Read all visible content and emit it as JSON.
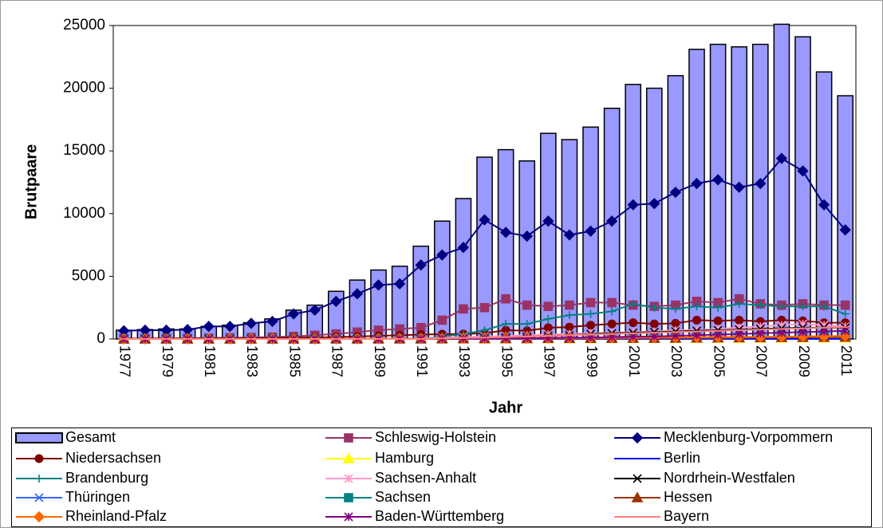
{
  "chart_data": {
    "type": "bar-line",
    "y_label": "Brutpaare",
    "x_label": "Jahr",
    "categories": [
      1977,
      null,
      1979,
      null,
      1981,
      null,
      1983,
      null,
      1985,
      null,
      1987,
      null,
      1989,
      null,
      1991,
      null,
      1993,
      null,
      1995,
      null,
      1997,
      null,
      1999,
      null,
      2001,
      null,
      2003,
      null,
      2005,
      null,
      2007,
      null,
      2009,
      null,
      2011
    ],
    "ylim": [
      0,
      25000
    ],
    "yticks": [
      0,
      5000,
      10000,
      15000,
      20000,
      25000
    ],
    "grid": false,
    "legend": "bottom",
    "series": [
      {
        "name": "Gesamt",
        "kind": "bar",
        "color": "#9999ff",
        "values": [
          700,
          750,
          800,
          800,
          1000,
          1100,
          1300,
          1600,
          2300,
          2700,
          3800,
          4700,
          5500,
          5800,
          7400,
          9400,
          11200,
          14500,
          15100,
          14200,
          16400,
          15900,
          16900,
          18400,
          20300,
          20000,
          21000,
          23100,
          23500,
          23300,
          23500,
          25100,
          24100,
          21300,
          19400
        ]
      },
      {
        "name": "Schleswig-Holstein",
        "kind": "line",
        "marker": "square",
        "color": "#993366",
        "values": [
          30,
          40,
          50,
          60,
          80,
          100,
          120,
          150,
          200,
          300,
          400,
          550,
          700,
          800,
          900,
          1500,
          2400,
          2500,
          3200,
          2700,
          2600,
          2700,
          2900,
          2900,
          2700,
          2600,
          2700,
          3000,
          2900,
          3200,
          2800,
          2700,
          2800,
          2700,
          2700
        ]
      },
      {
        "name": "Mecklenburg-Vorpommern",
        "kind": "line",
        "marker": "diamond",
        "color": "#000080",
        "values": [
          650,
          700,
          700,
          750,
          1000,
          1000,
          1250,
          1400,
          2000,
          2300,
          3000,
          3600,
          4300,
          4400,
          5900,
          6700,
          7300,
          9500,
          8500,
          8200,
          9400,
          8300,
          8600,
          9400,
          10700,
          10800,
          11700,
          12400,
          12700,
          12100,
          12400,
          14400,
          13400,
          10700,
          8700
        ]
      },
      {
        "name": "Niedersachsen",
        "kind": "line",
        "marker": "circle",
        "color": "#800000",
        "values": [
          20,
          20,
          30,
          30,
          40,
          50,
          60,
          80,
          100,
          120,
          150,
          200,
          250,
          300,
          350,
          380,
          400,
          450,
          700,
          650,
          900,
          950,
          1100,
          1200,
          1300,
          1200,
          1250,
          1500,
          1450,
          1500,
          1400,
          1500,
          1450,
          1300,
          1300
        ]
      },
      {
        "name": "Hamburg",
        "kind": "line",
        "marker": "triangle",
        "color": "#ffff00",
        "values": [
          0,
          0,
          0,
          0,
          0,
          0,
          0,
          0,
          0,
          0,
          0,
          0,
          0,
          0,
          0,
          10,
          10,
          20,
          20,
          20,
          30,
          30,
          30,
          40,
          40,
          50,
          50,
          60,
          60,
          60,
          70,
          70,
          80,
          80,
          80
        ]
      },
      {
        "name": "Berlin",
        "kind": "line",
        "marker": "dash",
        "color": "#0000ff",
        "values": [
          0,
          0,
          0,
          0,
          0,
          0,
          0,
          0,
          0,
          0,
          0,
          0,
          0,
          0,
          0,
          10,
          10,
          10,
          10,
          10,
          10,
          10,
          10,
          10,
          10,
          10,
          10,
          10,
          10,
          10,
          10,
          10,
          10,
          10,
          10
        ]
      },
      {
        "name": "Brandenburg",
        "kind": "line",
        "marker": "plus",
        "color": "#008080",
        "values": [
          0,
          0,
          0,
          0,
          0,
          0,
          0,
          0,
          0,
          0,
          0,
          0,
          0,
          0,
          0,
          200,
          400,
          700,
          1200,
          1200,
          1600,
          1900,
          2000,
          2200,
          2800,
          2500,
          2400,
          2600,
          2500,
          2800,
          2700,
          2600,
          2600,
          2600,
          2000
        ]
      },
      {
        "name": "Sachsen-Anhalt",
        "kind": "line",
        "marker": "star",
        "color": "#ff99cc",
        "values": [
          0,
          0,
          0,
          0,
          0,
          0,
          0,
          0,
          0,
          0,
          0,
          0,
          0,
          0,
          50,
          100,
          150,
          200,
          250,
          300,
          350,
          400,
          450,
          500,
          550,
          600,
          700,
          700,
          800,
          900,
          1000,
          1100,
          1200,
          1100,
          1000
        ]
      },
      {
        "name": "Nordrhein-Westfalen",
        "kind": "line",
        "marker": "x",
        "color": "#000000",
        "values": [
          0,
          0,
          0,
          0,
          0,
          0,
          0,
          0,
          0,
          0,
          0,
          0,
          0,
          0,
          0,
          0,
          50,
          100,
          150,
          200,
          250,
          300,
          400,
          450,
          500,
          550,
          600,
          650,
          700,
          750,
          800,
          850,
          900,
          900,
          900
        ]
      },
      {
        "name": "Thüringen",
        "kind": "line",
        "marker": "x",
        "color": "#3366ff",
        "values": [
          0,
          0,
          0,
          0,
          0,
          0,
          0,
          0,
          0,
          0,
          0,
          0,
          0,
          0,
          0,
          20,
          30,
          30,
          40,
          50,
          50,
          60,
          60,
          70,
          80,
          90,
          100,
          100,
          110,
          120,
          130,
          140,
          150,
          150,
          160
        ]
      },
      {
        "name": "Sachsen",
        "kind": "line",
        "marker": "square",
        "color": "#008080",
        "values": [
          0,
          0,
          0,
          0,
          0,
          0,
          0,
          0,
          0,
          0,
          0,
          0,
          0,
          0,
          0,
          10,
          20,
          30,
          40,
          50,
          60,
          70,
          80,
          90,
          100,
          110,
          120,
          130,
          140,
          150,
          160,
          170,
          180,
          190,
          200
        ]
      },
      {
        "name": "Hessen",
        "kind": "line",
        "marker": "triangle",
        "color": "#993300",
        "values": [
          0,
          0,
          0,
          0,
          0,
          0,
          0,
          0,
          0,
          0,
          10,
          10,
          10,
          20,
          20,
          20,
          20,
          30,
          30,
          30,
          40,
          40,
          50,
          50,
          60,
          60,
          70,
          80,
          90,
          100,
          110,
          120,
          130,
          140,
          150
        ]
      },
      {
        "name": "Rheinland-Pfalz",
        "kind": "line",
        "marker": "diamond",
        "color": "#ff6600",
        "values": [
          0,
          0,
          0,
          0,
          0,
          0,
          0,
          0,
          0,
          0,
          10,
          10,
          20,
          20,
          30,
          30,
          40,
          40,
          50,
          60,
          70,
          80,
          90,
          100,
          110,
          120,
          130,
          140,
          150,
          160,
          170,
          180,
          200,
          220,
          250
        ]
      },
      {
        "name": "Baden-Württemberg",
        "kind": "line",
        "marker": "star",
        "color": "#800080",
        "values": [
          0,
          0,
          0,
          0,
          0,
          0,
          0,
          0,
          0,
          0,
          0,
          0,
          0,
          0,
          0,
          20,
          30,
          40,
          50,
          60,
          80,
          100,
          120,
          150,
          180,
          200,
          250,
          300,
          350,
          400,
          450,
          500,
          550,
          600,
          650
        ]
      },
      {
        "name": "Bayern",
        "kind": "line",
        "marker": "dash",
        "color": "#ff8080",
        "values": [
          0,
          0,
          0,
          0,
          0,
          0,
          0,
          0,
          0,
          0,
          0,
          0,
          0,
          0,
          0,
          50,
          80,
          100,
          150,
          200,
          250,
          300,
          350,
          400,
          450,
          500,
          550,
          600,
          650,
          700,
          750,
          800,
          850,
          900,
          950
        ]
      }
    ]
  }
}
